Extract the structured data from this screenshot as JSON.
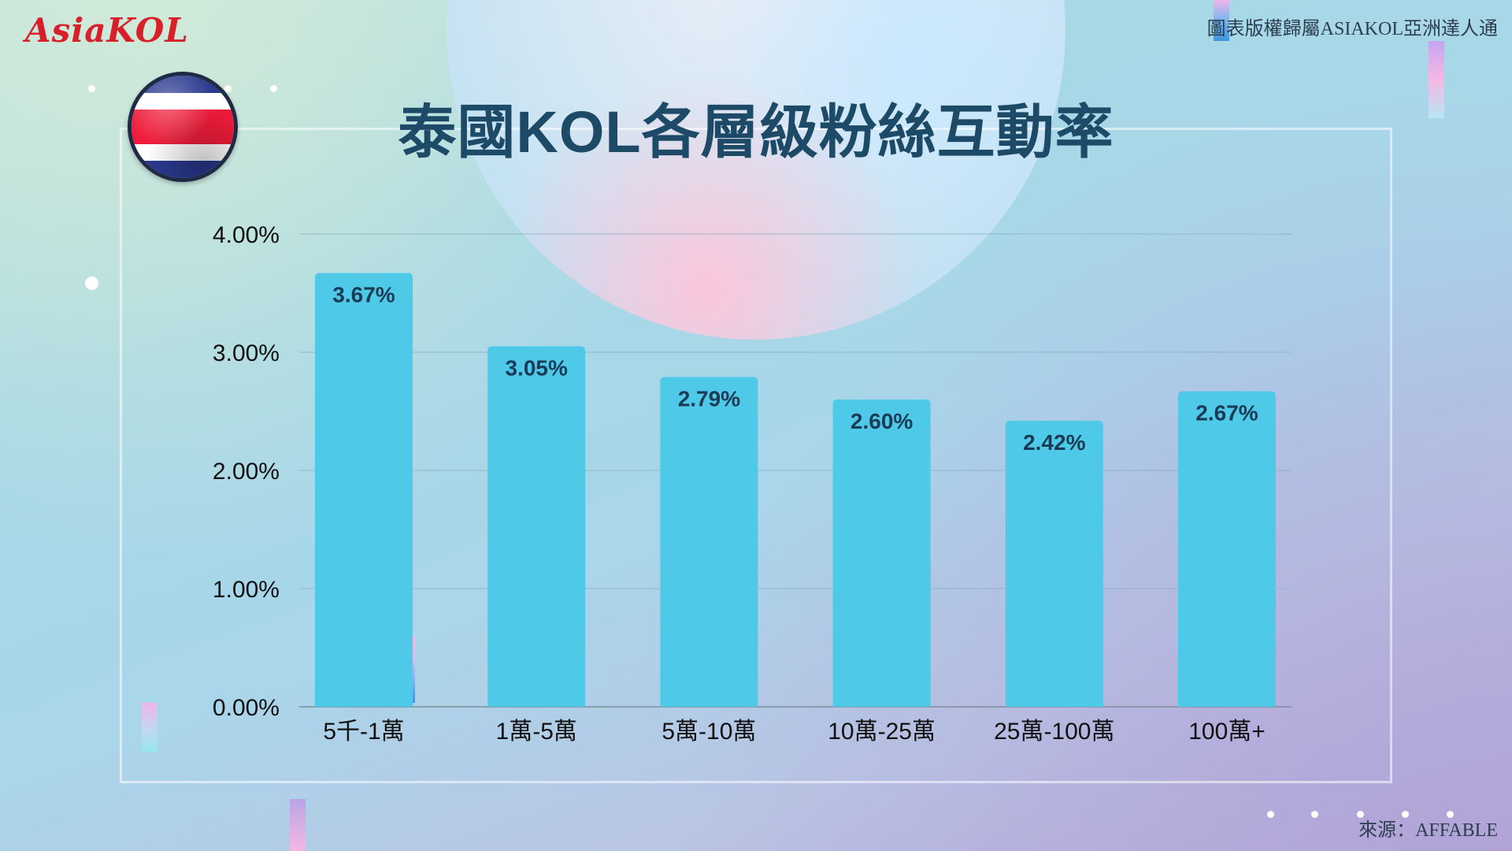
{
  "brand": {
    "logo_text": "AsiaKOL",
    "logo_color": "#d81f2a"
  },
  "copyright": "圖表版權歸屬ASIAKOL亞洲達人通",
  "source": "來源：AFFABLE",
  "title": "泰國KOL各層級粉絲互動率",
  "flag": {
    "name": "thailand-flag",
    "colors": [
      "#ee1c3a",
      "#ffffff",
      "#2b3a8f"
    ]
  },
  "colors": {
    "bar": "#4ecae8",
    "grid": "#8fb3c3",
    "axis": "#7e8d96",
    "title": "#1d4a66",
    "value_label": "#1b3a55"
  },
  "chart_data": {
    "type": "bar",
    "title": "",
    "xlabel": "",
    "ylabel": "",
    "categories": [
      "5千-1萬",
      "1萬-5萬",
      "5萬-10萬",
      "10萬-25萬",
      "25萬-100萬",
      "100萬+"
    ],
    "values": [
      3.67,
      3.05,
      2.79,
      2.6,
      2.42,
      2.67
    ],
    "value_labels": [
      "3.67%",
      "3.05%",
      "2.79%",
      "2.60%",
      "2.42%",
      "2.67%"
    ],
    "unit": "%",
    "ylim": [
      0,
      4
    ],
    "yticks": [
      0,
      1,
      2,
      3,
      4
    ],
    "ytick_labels": [
      "0.00%",
      "1.00%",
      "2.00%",
      "3.00%",
      "4.00%"
    ],
    "grid": true,
    "legend": "none"
  }
}
